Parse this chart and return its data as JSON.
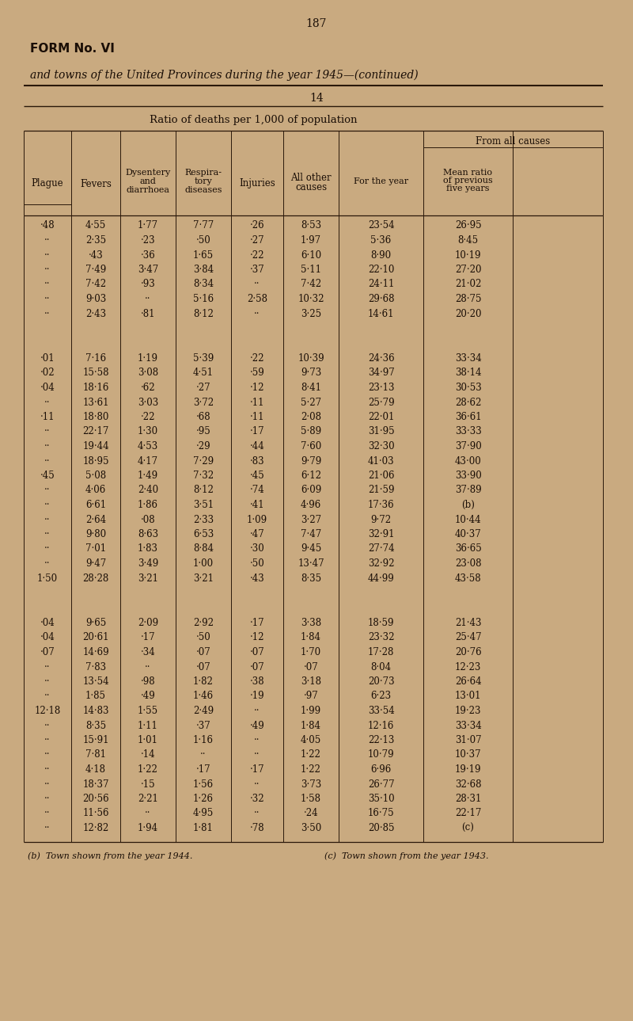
{
  "page_number": "187",
  "form_title": "FORM No. VI",
  "subtitle": "and towns of the United Provinces during the year 1945—(continued)",
  "section_number": "14",
  "table_title": "Ratio of deaths per 1,000 of population",
  "from_all_causes_header": "From all causes",
  "rows": [
    [
      "·48",
      "4·55",
      "1·77",
      "7·77",
      "·26",
      "8·53",
      "23·54",
      "26·95"
    ],
    [
      "··",
      "2·35",
      "·23",
      "·50",
      "·27",
      "1·97",
      "5·36",
      "8·45"
    ],
    [
      "··",
      "·43",
      "·36",
      "1·65",
      "·22",
      "6·10",
      "8·90",
      "10·19"
    ],
    [
      "··",
      "7·49",
      "3·47",
      "3·84",
      "·37",
      "5·11",
      "22·10",
      "27·20"
    ],
    [
      "··",
      "7·42",
      "·93",
      "8·34",
      "··",
      "7·42",
      "24·11",
      "21·02"
    ],
    [
      "··",
      "9·03",
      "··",
      "5·16",
      "2·58",
      "10·32",
      "29·68",
      "28·75"
    ],
    [
      "··",
      "2·43",
      "·81",
      "8·12",
      "··",
      "3·25",
      "14·61",
      "20·20"
    ],
    [
      "GAP",
      "",
      "",
      "",
      "",
      "",
      "",
      ""
    ],
    [
      "·01",
      "7·16",
      "1·19",
      "5·39",
      "·22",
      "10·39",
      "24·36",
      "33·34"
    ],
    [
      "·02",
      "15·58",
      "3·08",
      "4·51",
      "·59",
      "9·73",
      "34·97",
      "38·14"
    ],
    [
      "·04",
      "18·16",
      "·62",
      "·27",
      "·12",
      "8·41",
      "23·13",
      "30·53"
    ],
    [
      "··",
      "13·61",
      "3·03",
      "3·72",
      "·11",
      "5·27",
      "25·79",
      "28·62"
    ],
    [
      "·11",
      "18·80",
      "·22",
      "·68",
      "·11",
      "2·08",
      "22·01",
      "36·61"
    ],
    [
      "··",
      "22·17",
      "1·30",
      "·95",
      "·17",
      "5·89",
      "31·95",
      "33·33"
    ],
    [
      "··",
      "19·44",
      "4·53",
      "·29",
      "·44",
      "7·60",
      "32·30",
      "37·90"
    ],
    [
      "··",
      "18·95",
      "4·17",
      "7·29",
      "·83",
      "9·79",
      "41·03",
      "43·00"
    ],
    [
      "·45",
      "5·08",
      "1·49",
      "7·32",
      "·45",
      "6·12",
      "21·06",
      "33·90"
    ],
    [
      "··",
      "4·06",
      "2·40",
      "8·12",
      "·74",
      "6·09",
      "21·59",
      "37·89"
    ],
    [
      "··",
      "6·61",
      "1·86",
      "3·51",
      "·41",
      "4·96",
      "17·36",
      "(b)"
    ],
    [
      "··",
      "2·64",
      "·08",
      "2·33",
      "1·09",
      "3·27",
      "9·72",
      "10·44"
    ],
    [
      "··",
      "9·80",
      "8·63",
      "6·53",
      "·47",
      "7·47",
      "32·91",
      "40·37"
    ],
    [
      "··",
      "7·01",
      "1·83",
      "8·84",
      "·30",
      "9·45",
      "27·74",
      "36·65"
    ],
    [
      "··",
      "9·47",
      "3·49",
      "1·00",
      "·50",
      "13·47",
      "32·92",
      "23·08"
    ],
    [
      "1·50",
      "28·28",
      "3·21",
      "3·21",
      "·43",
      "8·35",
      "44·99",
      "43·58"
    ],
    [
      "GAP",
      "",
      "",
      "",
      "",
      "",
      "",
      ""
    ],
    [
      "·04",
      "9·65",
      "2·09",
      "2·92",
      "·17",
      "3·38",
      "18·59",
      "21·43"
    ],
    [
      "·04",
      "20·61",
      "·17",
      "·50",
      "·12",
      "1·84",
      "23·32",
      "25·47"
    ],
    [
      "·07",
      "14·69",
      "·34",
      "·07",
      "·07",
      "1·70",
      "17·28",
      "20·76"
    ],
    [
      "··",
      "7·83",
      "··",
      "·07",
      "·07",
      "·07",
      "8·04",
      "12·23"
    ],
    [
      "··",
      "13·54",
      "·98",
      "1·82",
      "·38",
      "3·18",
      "20·73",
      "26·64"
    ],
    [
      "··",
      "1·85",
      "·49",
      "1·46",
      "·19",
      "·97",
      "6·23",
      "13·01"
    ],
    [
      "12·18",
      "14·83",
      "1·55",
      "2·49",
      "··",
      "1·99",
      "33·54",
      "19·23"
    ],
    [
      "··",
      "8·35",
      "1·11",
      "·37",
      "·49",
      "1·84",
      "12·16",
      "33·34"
    ],
    [
      "··",
      "15·91",
      "1·01",
      "1·16",
      "··",
      "4·05",
      "22·13",
      "31·07"
    ],
    [
      "··",
      "7·81",
      "·14",
      "··",
      "··",
      "1·22",
      "10·79",
      "10·37"
    ],
    [
      "··",
      "4·18",
      "1·22",
      "·17",
      "·17",
      "1·22",
      "6·96",
      "19·19"
    ],
    [
      "··",
      "18·37",
      "·15",
      "1·56",
      "··",
      "3·73",
      "26·77",
      "32·68"
    ],
    [
      "··",
      "20·56",
      "2·21",
      "1·26",
      "·32",
      "1·58",
      "35·10",
      "28·31"
    ],
    [
      "··",
      "11·56",
      "··",
      "4·95",
      "··",
      "·24",
      "16·75",
      "22·17"
    ],
    [
      "··",
      "12·82",
      "1·94",
      "1·81",
      "·78",
      "3·50",
      "20·85",
      "(c)"
    ]
  ],
  "footnote1": "(b)  Town shown from the year 1944.",
  "footnote2": "(c)  Town shown from the year 1943.",
  "bg_color": "#c9aa80",
  "text_color": "#1a0e06",
  "line_color": "#2a180a"
}
